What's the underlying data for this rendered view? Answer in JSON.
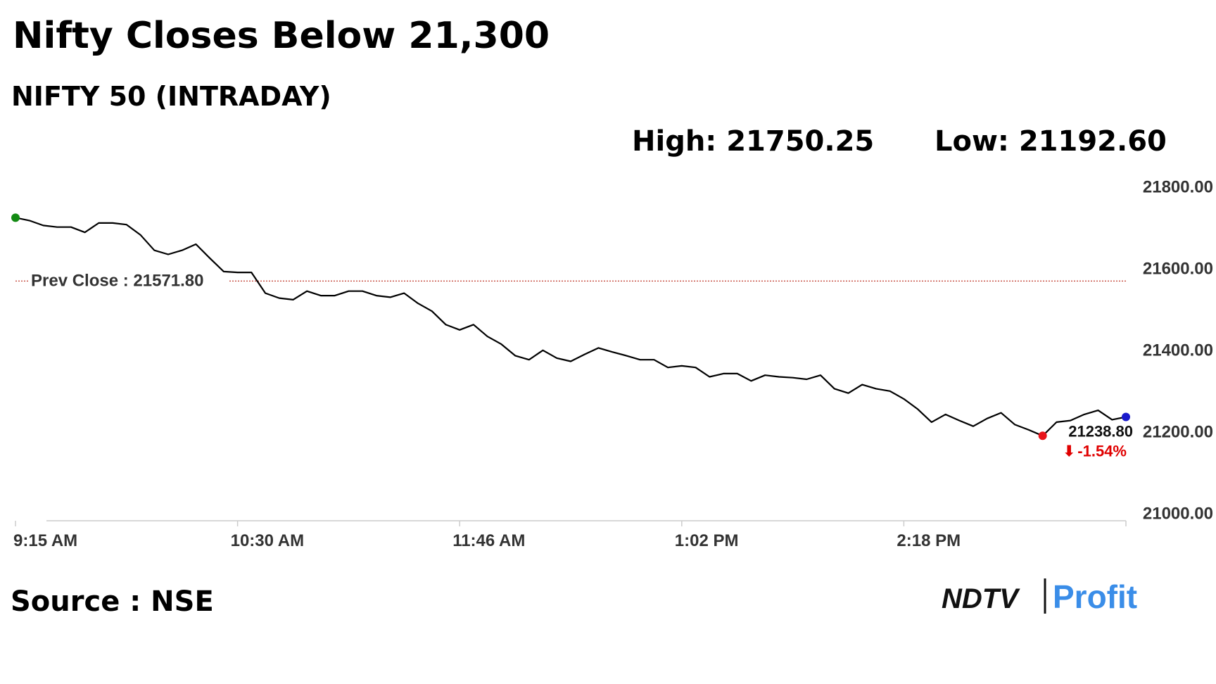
{
  "chart_data": {
    "type": "line",
    "title": "Nifty Closes Below 21,300",
    "subtitle": "NIFTY 50 (INTRADAY)",
    "high_label": "High: 21750.25",
    "low_label": "Low: 21192.60",
    "source": "Source : NSE",
    "logo": {
      "left": "NDTV",
      "right": "Profit"
    },
    "categories": [
      "9:15 AM",
      null,
      null,
      null,
      null,
      null,
      null,
      null,
      null,
      null,
      null,
      null,
      null,
      null,
      null,
      null,
      "10:30 AM",
      null,
      null,
      null,
      null,
      null,
      null,
      null,
      null,
      null,
      null,
      null,
      null,
      null,
      null,
      null,
      "11:46 AM",
      null,
      null,
      null,
      null,
      null,
      null,
      null,
      null,
      null,
      null,
      null,
      null,
      null,
      null,
      null,
      "1:02 PM",
      null,
      null,
      null,
      null,
      null,
      null,
      null,
      null,
      null,
      null,
      null,
      null,
      null,
      null,
      null,
      "2:18 PM",
      null,
      null,
      null,
      null,
      null,
      null,
      null,
      null,
      null,
      null,
      null,
      null,
      null,
      null,
      null,
      null
    ],
    "values": [
      21727,
      21720,
      21708,
      21704,
      21704,
      21691,
      21714,
      21714,
      21710,
      21685,
      21647,
      21637,
      21647,
      21662,
      21628,
      21595,
      21593,
      21593,
      21542,
      21530,
      21526,
      21547,
      21536,
      21536,
      21547,
      21547,
      21536,
      21532,
      21542,
      21517,
      21498,
      21465,
      21452,
      21465,
      21436,
      21417,
      21389,
      21379,
      21402,
      21383,
      21375,
      21392,
      21408,
      21398,
      21389,
      21379,
      21379,
      21360,
      21364,
      21360,
      21337,
      21345,
      21345,
      21327,
      21341,
      21337,
      21335,
      21331,
      21341,
      21308,
      21297,
      21318,
      21308,
      21302,
      21283,
      21258,
      21226,
      21245,
      21230,
      21216,
      21235,
      21249,
      21220,
      21207,
      21192.6,
      21226,
      21230,
      21245,
      21255,
      21232,
      21238.8
    ],
    "color": "#000000",
    "markers": [
      {
        "index": 0,
        "color": "#138a13"
      },
      {
        "index": 74,
        "color": "#e8141a"
      },
      {
        "index": 80,
        "color": "#1a1acc"
      }
    ],
    "prev_close": {
      "value": 21571.8,
      "label": "Prev Close : 21571.80",
      "color": "#c0392b"
    },
    "end_label": {
      "value": 21238.8,
      "label": "21238.80",
      "change": "-1.54%",
      "change_color": "#e00000"
    },
    "ylim": [
      21000,
      21800
    ],
    "yticks": [
      {
        "value": 21000,
        "label": "21000.00"
      },
      {
        "value": 21200,
        "label": "21200.00"
      },
      {
        "value": 21400,
        "label": "21400.00"
      },
      {
        "value": 21600,
        "label": "21600.00"
      },
      {
        "value": 21800,
        "label": "21800.00"
      }
    ],
    "grid": false
  }
}
